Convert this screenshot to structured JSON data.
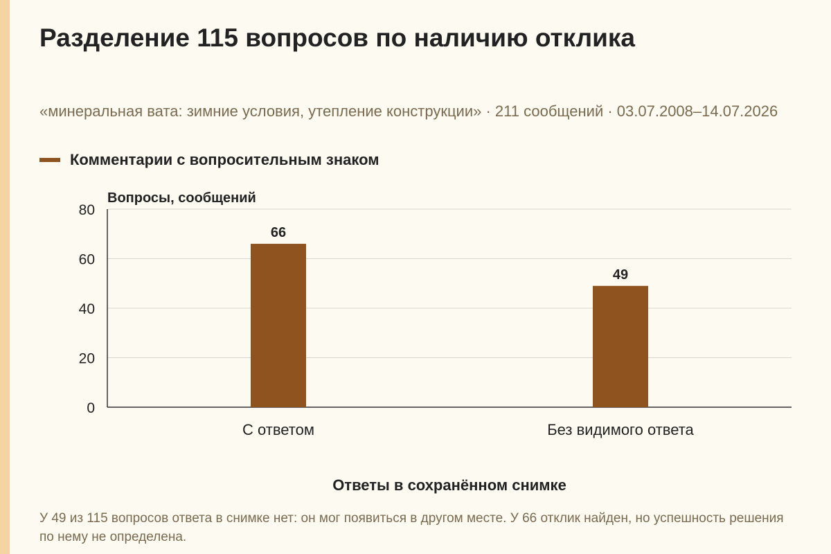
{
  "header": {
    "title": "Разделение 115 вопросов по наличию отклика",
    "subtitle": "«минеральная вата: зимние условия, утепление конструкции» · 211 сообщений · 03.07.2008–14.07.2026"
  },
  "legend": {
    "label": "Комментарии с вопросительным знаком"
  },
  "footnote": "У 49 из 115 вопросов ответа в снимке нет: он мог появиться в другом месте. У 66 отклик найден, но успешность решения по нему не определена.",
  "colors": {
    "bar": "#8f5320",
    "grid": "#d9d6cf",
    "axis": "#333333",
    "accent_strip": "#f6d3a3",
    "background": "#fdfaf1"
  },
  "chart_data": {
    "type": "bar",
    "title": "Разделение 115 вопросов по наличию отклика",
    "xlabel": "Ответы в сохранённом снимке",
    "ylabel": "Вопросы, сообщений",
    "categories": [
      "С ответом",
      "Без видимого ответа"
    ],
    "series": [
      {
        "name": "Комментарии с вопросительным знаком",
        "values": [
          66,
          49
        ]
      }
    ],
    "data_labels": [
      "66",
      "49"
    ],
    "ylim": [
      0,
      80
    ],
    "yticks": [
      0,
      20,
      40,
      60,
      80
    ],
    "ytick_labels": [
      "0",
      "20",
      "40",
      "60",
      "80"
    ],
    "grid": true,
    "legend_position": "top-left"
  }
}
